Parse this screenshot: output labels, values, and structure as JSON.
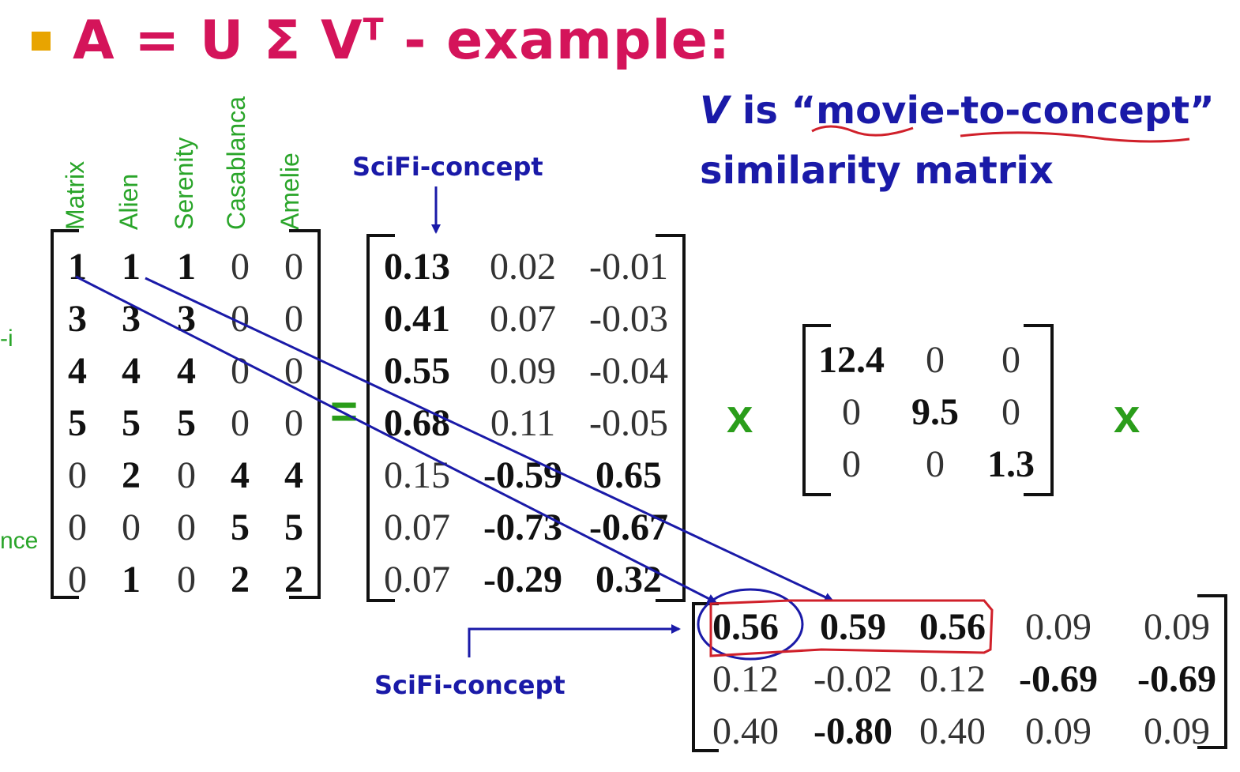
{
  "title": {
    "main": "A = U Σ V",
    "sup": "T",
    "suffix": " - example:"
  },
  "v_description": {
    "symbol": "V",
    "line1_mid": " is “",
    "term1": "movie",
    "dash": "-",
    "term2": "to-concept",
    "line1_end": "”",
    "line2": "similarity matrix"
  },
  "movies": [
    "Matrix",
    "Alien",
    "Serenity",
    "Casablanca",
    "Amelie"
  ],
  "cut_labels": [
    "-i",
    "nce"
  ],
  "labels": {
    "scifi_top": "SciFi-concept",
    "scifi_bottom": "SciFi-concept"
  },
  "operators": {
    "equals": "=",
    "times1": "x",
    "times2": "x"
  },
  "matrix_A": [
    [
      "1",
      "1",
      "1",
      "0",
      "0"
    ],
    [
      "3",
      "3",
      "3",
      "0",
      "0"
    ],
    [
      "4",
      "4",
      "4",
      "0",
      "0"
    ],
    [
      "5",
      "5",
      "5",
      "0",
      "0"
    ],
    [
      "0",
      "2",
      "0",
      "4",
      "4"
    ],
    [
      "0",
      "0",
      "0",
      "5",
      "5"
    ],
    [
      "0",
      "1",
      "0",
      "2",
      "2"
    ]
  ],
  "matrix_U": [
    [
      "0.13",
      "0.02",
      "-0.01"
    ],
    [
      "0.41",
      "0.07",
      "-0.03"
    ],
    [
      "0.55",
      "0.09",
      "-0.04"
    ],
    [
      "0.68",
      "0.11",
      "-0.05"
    ],
    [
      "0.15",
      "-0.59",
      "0.65"
    ],
    [
      "0.07",
      "-0.73",
      "-0.67"
    ],
    [
      "0.07",
      "-0.29",
      "0.32"
    ]
  ],
  "matrix_S": [
    [
      "12.4",
      "0",
      "0"
    ],
    [
      "0",
      "9.5",
      "0"
    ],
    [
      "0",
      "0",
      "1.3"
    ]
  ],
  "matrix_VT": [
    [
      "0.56",
      "0.59",
      "0.56",
      "0.09",
      "0.09"
    ],
    [
      "0.12",
      "-0.02",
      "0.12",
      "-0.69",
      "-0.69"
    ],
    [
      "0.40",
      "-0.80",
      "0.40",
      "0.09",
      "0.09"
    ]
  ],
  "colors": {
    "title": "#d4145a",
    "blue": "#1a1aa8",
    "green": "#2aa52a",
    "red": "#d0202a",
    "bullet": "#e8a400"
  }
}
